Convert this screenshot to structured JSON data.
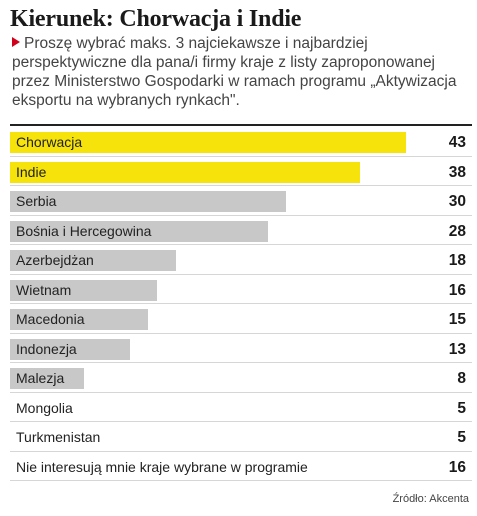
{
  "header": {
    "title": "Kierunek: Chorwacja i Indie",
    "subtitle": "Proszę wybrać maks. 3 najciekawsze i najbardziej perspektywiczne dla pana/i firmy kraje z listy zaproponowanej przez Ministerstwo Gospodarki w ramach programu „Aktywizacja eksportu na wybranych rynkach\"."
  },
  "footer": {
    "source": "Źródło: Akcenta"
  },
  "colors": {
    "highlight": "#f7e30c",
    "bar": "#c8c8c8",
    "marker": "#d0021b"
  },
  "chart_data": {
    "type": "bar",
    "orientation": "horizontal",
    "title": "Kierunek: Chorwacja i Indie",
    "categories": [
      "Chorwacja",
      "Indie",
      "Serbia",
      "Bośnia i Hercegowina",
      "Azerbejdżan",
      "Wietnam",
      "Macedonia",
      "Indonezja",
      "Malezja",
      "Mongolia",
      "Turkmenistan",
      "Nie interesują mnie kraje wybrane w programie"
    ],
    "values": [
      43,
      38,
      30,
      28,
      18,
      16,
      15,
      13,
      8,
      5,
      5,
      16
    ],
    "highlighted": [
      true,
      true,
      false,
      false,
      false,
      false,
      false,
      false,
      false,
      false,
      false,
      false
    ],
    "show_bars": [
      true,
      true,
      true,
      true,
      true,
      true,
      true,
      true,
      true,
      false,
      false,
      false
    ],
    "xlim": [
      0,
      50
    ]
  }
}
